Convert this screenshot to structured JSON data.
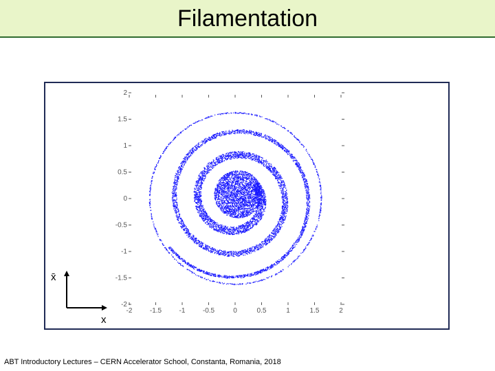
{
  "slide": {
    "title": "Filamentation",
    "footer": "ABT Introductory Lectures – CERN Accelerator School, Constanta, Romania, 2018"
  },
  "colors": {
    "title_bar_bg": "#e9f5c9",
    "title_bar_rule": "#2f6b2f",
    "frame_border": "#1f2a55",
    "particles": "#1a1aff"
  },
  "chart_data": {
    "type": "scatter",
    "description_visible": "phase-space particle distribution",
    "xlabel": "x",
    "ylabel": "x̄",
    "xlim": [
      -2,
      2
    ],
    "ylim": [
      -2,
      2
    ],
    "x_tick_labels": [
      "-2",
      "-1.5",
      "-1",
      "-0.5",
      "0",
      "0.5",
      "1",
      "1.5",
      "2"
    ],
    "y_tick_labels": [
      "2",
      "1.5",
      "1",
      "0.5",
      "0",
      "-0.5",
      "-1",
      "-1.5",
      "-2"
    ],
    "grid": false,
    "series": [
      {
        "shape": "spiral",
        "core_radius": 0.45,
        "outer_radius": 1.55,
        "turns": 2.5
      }
    ]
  }
}
